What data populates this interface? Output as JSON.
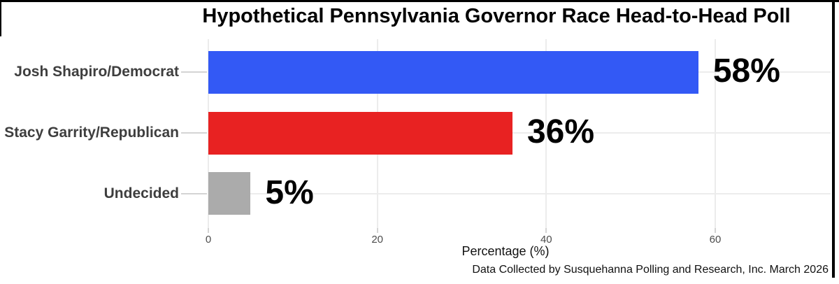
{
  "chart_data": {
    "type": "bar",
    "orientation": "horizontal",
    "title": "Hypothetical Pennsylvania Governor Race Head-to-Head Poll",
    "categories": [
      "Josh Shapiro/Democrat",
      "Stacy Garrity/Republican",
      "Undecided"
    ],
    "values": [
      58,
      36,
      5
    ],
    "value_labels": [
      "58%",
      "36%",
      "5%"
    ],
    "bar_colors": [
      "#3359f5",
      "#e82222",
      "#ababab"
    ],
    "xlabel": "Percentage (%)",
    "x_tick_labels": [
      "0",
      "20",
      "40",
      "60"
    ],
    "x_tick_values": [
      0,
      20,
      40,
      60
    ],
    "xlim": [
      0,
      73.6
    ],
    "grid": true,
    "legend_position": "none",
    "caption": "Data Collected by Susquehanna Polling and Research, Inc. March 2026"
  },
  "colors": {
    "grid": "#ececec",
    "axis_tick": "#d4d4d4",
    "category_label": "#3e3e3e",
    "tick_label": "#4d4d4d",
    "value_label": "#000000",
    "frame": "#000000",
    "background": "#ffffff"
  }
}
